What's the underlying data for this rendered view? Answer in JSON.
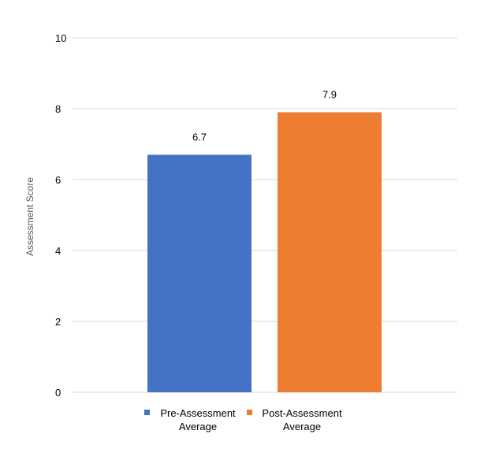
{
  "chart_data": {
    "type": "bar",
    "title": "",
    "xlabel": "",
    "ylabel": "Assessment Score",
    "ylim": [
      0,
      10
    ],
    "yticks": [
      0,
      2,
      4,
      6,
      8,
      10
    ],
    "grid": true,
    "legend_position": "bottom",
    "series": [
      {
        "name": "Pre-Assessment Average",
        "name_lines": [
          "Pre-Assessment",
          "Average"
        ],
        "value": 6.7,
        "value_label": "6.7",
        "color": "#4472C4"
      },
      {
        "name": "Post-Assessment Average",
        "name_lines": [
          "Post-Assessment",
          "Average"
        ],
        "value": 7.9,
        "value_label": "7.9",
        "color": "#ED7D31"
      }
    ]
  }
}
